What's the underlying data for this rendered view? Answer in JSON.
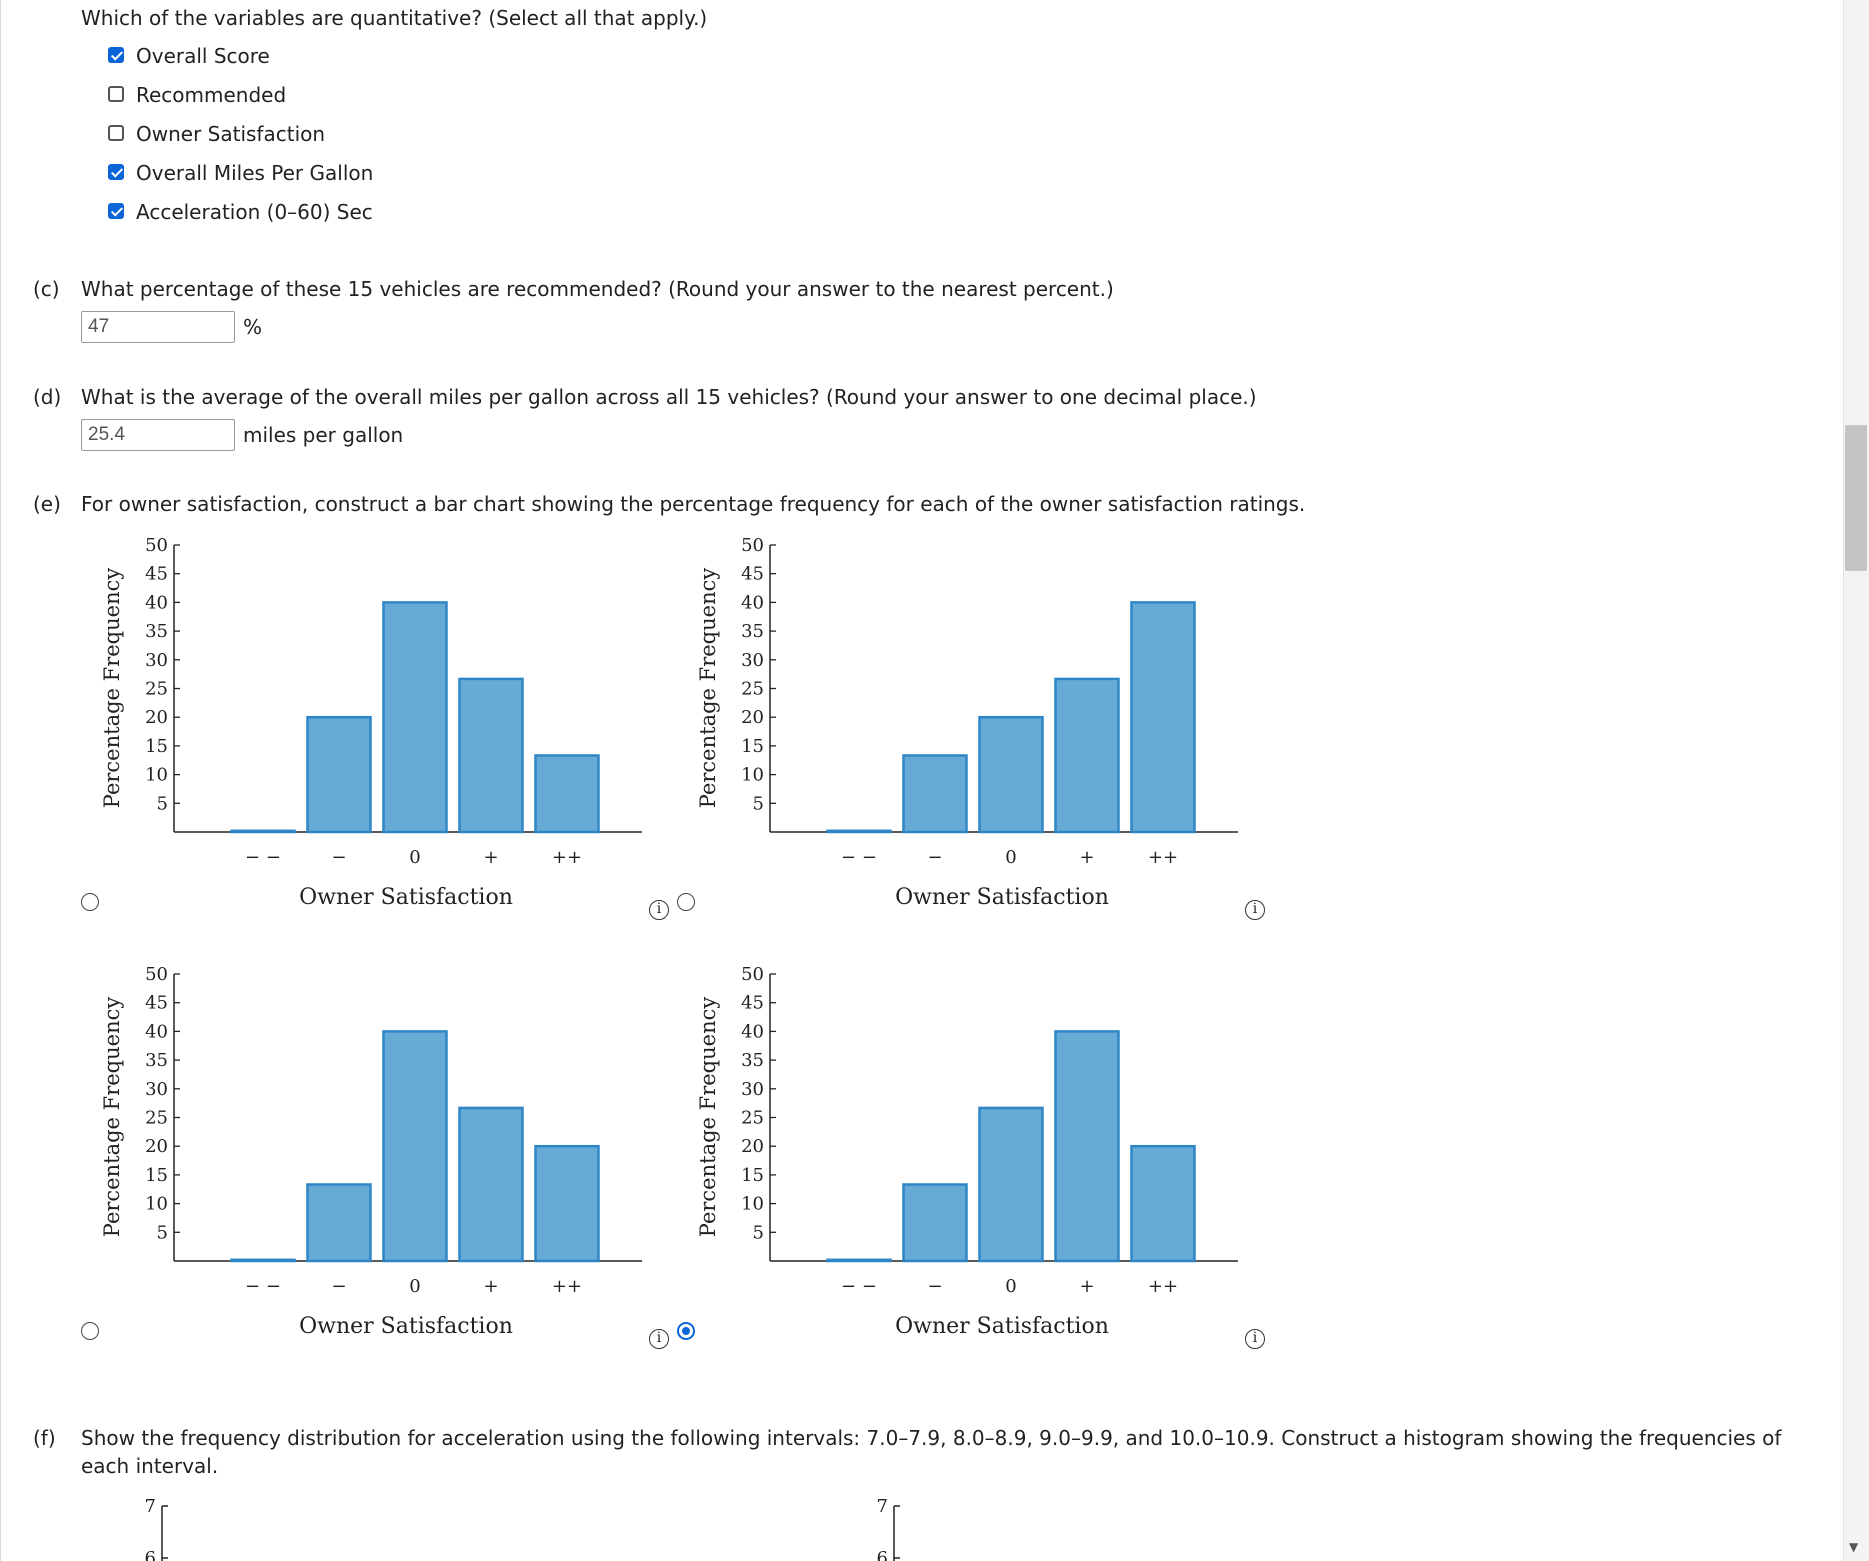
{
  "part_b": {
    "question": "Which of the variables are quantitative? (Select all that apply.)",
    "options": [
      {
        "label": "Overall Score",
        "checked": true
      },
      {
        "label": "Recommended",
        "checked": false
      },
      {
        "label": "Owner Satisfaction",
        "checked": false
      },
      {
        "label": "Overall Miles Per Gallon",
        "checked": true
      },
      {
        "label": "Acceleration (0–60) Sec",
        "checked": true
      }
    ]
  },
  "part_c": {
    "tag": "(c)",
    "question": "What percentage of these 15 vehicles are recommended? (Round your answer to the nearest percent.)",
    "value": "47",
    "unit": "%"
  },
  "part_d": {
    "tag": "(d)",
    "question": "What is the average of the overall miles per gallon across all 15 vehicles? (Round your answer to one decimal place.)",
    "value": "25.4",
    "unit": "miles per gallon"
  },
  "part_e": {
    "tag": "(e)",
    "question": "For owner satisfaction, construct a bar chart showing the percentage frequency for each of the owner satisfaction ratings.",
    "selected_option": 3
  },
  "part_f": {
    "tag": "(f)",
    "question_line1": "Show the frequency distribution for acceleration using the following intervals: 7.0–7.9, 8.0–8.9, 9.0–9.9, and 10.0–10.9. Construct a histogram showing the frequencies of",
    "question_line2": "each interval.",
    "partial_ticks": [
      "7",
      "6"
    ]
  },
  "info_glyph": "i",
  "colors": {
    "bar_fill": "#66aad6",
    "bar_stroke": "#2f86c6",
    "radio_selected": "#0a66d6",
    "checkbox": "#0a66d6"
  },
  "chart_data": [
    {
      "type": "bar",
      "categories": [
        "− −",
        "−",
        "0",
        "+",
        "++"
      ],
      "values": [
        0,
        20,
        40,
        26.67,
        13.33
      ],
      "xlabel": "Owner Satisfaction",
      "ylabel": "Percentage Frequency",
      "yticks": [
        5,
        10,
        15,
        20,
        25,
        30,
        35,
        40,
        45,
        50
      ],
      "ylim": [
        0,
        50
      ]
    },
    {
      "type": "bar",
      "categories": [
        "− −",
        "−",
        "0",
        "+",
        "++"
      ],
      "values": [
        0,
        13.33,
        20,
        26.67,
        40
      ],
      "xlabel": "Owner Satisfaction",
      "ylabel": "Percentage Frequency",
      "yticks": [
        5,
        10,
        15,
        20,
        25,
        30,
        35,
        40,
        45,
        50
      ],
      "ylim": [
        0,
        50
      ]
    },
    {
      "type": "bar",
      "categories": [
        "− −",
        "−",
        "0",
        "+",
        "++"
      ],
      "values": [
        0,
        13.33,
        40,
        26.67,
        20
      ],
      "xlabel": "Owner Satisfaction",
      "ylabel": "Percentage Frequency",
      "yticks": [
        5,
        10,
        15,
        20,
        25,
        30,
        35,
        40,
        45,
        50
      ],
      "ylim": [
        0,
        50
      ]
    },
    {
      "type": "bar",
      "categories": [
        "− −",
        "−",
        "0",
        "+",
        "++"
      ],
      "values": [
        0,
        13.33,
        26.67,
        40,
        20
      ],
      "xlabel": "Owner Satisfaction",
      "ylabel": "Percentage Frequency",
      "yticks": [
        5,
        10,
        15,
        20,
        25,
        30,
        35,
        40,
        45,
        50
      ],
      "ylim": [
        0,
        50
      ]
    }
  ]
}
